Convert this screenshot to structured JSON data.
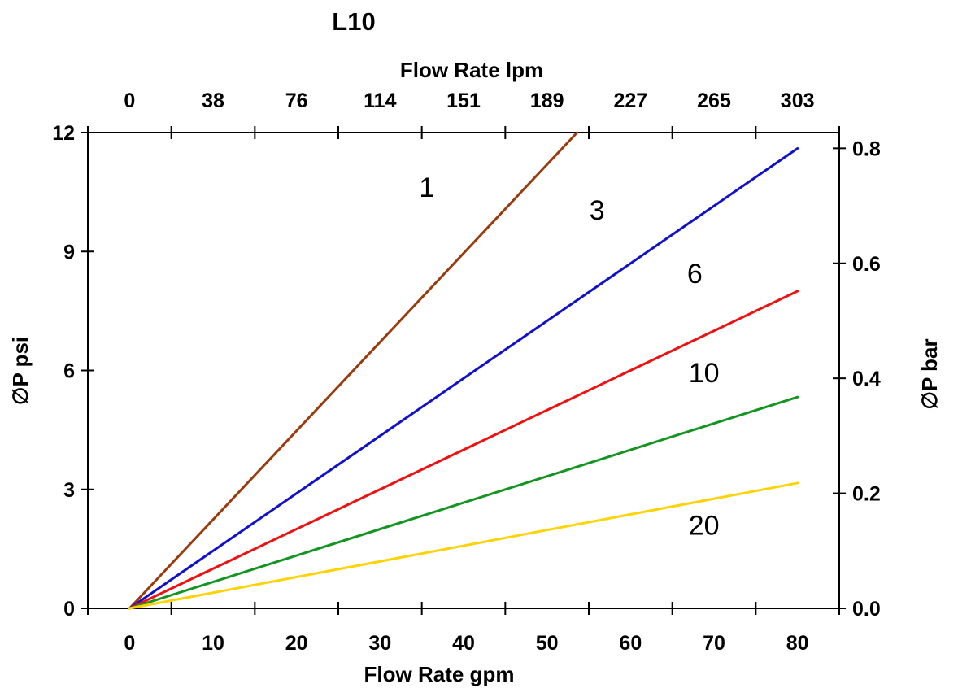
{
  "chart_data": {
    "type": "line",
    "title": "L10",
    "x_top": {
      "label": "Flow Rate lpm",
      "tick_labels": [
        "0",
        "38",
        "76",
        "114",
        "151",
        "189",
        "227",
        "265",
        "303"
      ]
    },
    "x_bottom": {
      "label": "Flow Rate gpm",
      "tick_labels": [
        "0",
        "10",
        "20",
        "30",
        "40",
        "50",
        "60",
        "70",
        "80"
      ],
      "range_gpm": [
        -5,
        85
      ],
      "boundary_ticks_gpm": [
        -5,
        5,
        15,
        25,
        35,
        45,
        55,
        65,
        75,
        85
      ]
    },
    "y_left": {
      "label": "∅P psi",
      "ticks": [
        0,
        3,
        6,
        9,
        12
      ],
      "range": [
        0,
        12
      ]
    },
    "y_right": {
      "label": "∅P bar",
      "ticks": [
        "0.0",
        "0.2",
        "0.4",
        "0.6",
        "0.8"
      ],
      "psi_per_bar": 14.5038
    },
    "grid": false,
    "legend": "inline-labels",
    "series": [
      {
        "name": "1",
        "color": "#9B3A0D",
        "points_gpm_psi": [
          [
            0,
            0
          ],
          [
            53.6,
            12.0
          ]
        ],
        "label_pos_gpm_psi": [
          35.6,
          10.63
        ]
      },
      {
        "name": "3",
        "color": "#1111CC",
        "points_gpm_psi": [
          [
            0,
            0
          ],
          [
            80,
            11.6
          ]
        ],
        "label_pos_gpm_psi": [
          56.0,
          10.05
        ]
      },
      {
        "name": "6",
        "color": "#EE1111",
        "points_gpm_psi": [
          [
            0,
            0
          ],
          [
            80,
            8.0
          ]
        ],
        "label_pos_gpm_psi": [
          67.7,
          8.45
        ]
      },
      {
        "name": "10",
        "color": "#149421",
        "points_gpm_psi": [
          [
            0,
            0
          ],
          [
            80,
            5.33
          ]
        ],
        "label_pos_gpm_psi": [
          68.8,
          5.95
        ]
      },
      {
        "name": "20",
        "color": "#FFD306",
        "points_gpm_psi": [
          [
            0,
            0
          ],
          [
            80,
            3.16
          ]
        ],
        "label_pos_gpm_psi": [
          68.8,
          2.1
        ]
      }
    ]
  }
}
